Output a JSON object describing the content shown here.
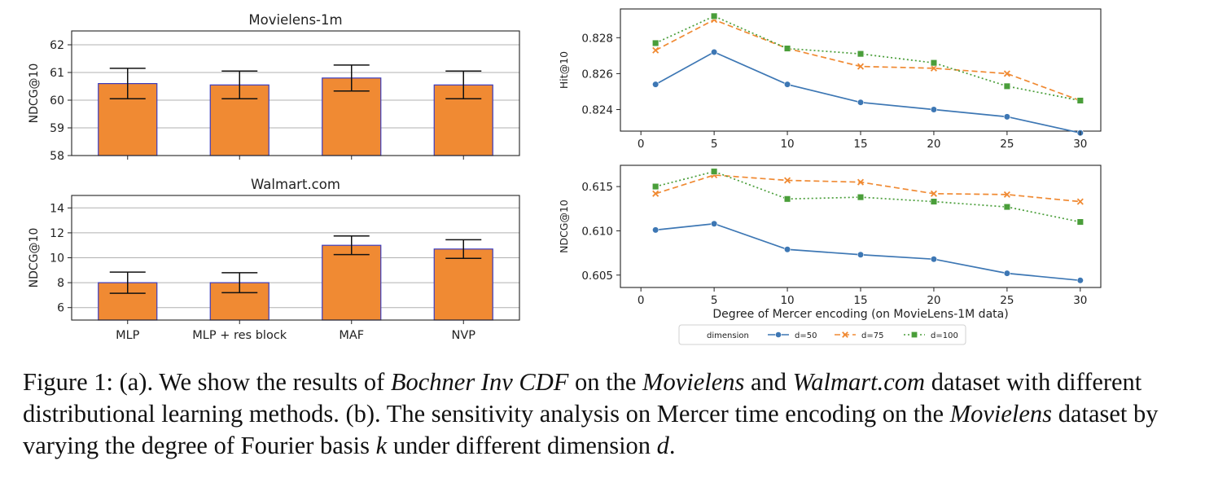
{
  "panel_a": [
    {
      "title": "Movielens-1m",
      "ylabel": "NDCG@10",
      "ylim": [
        58,
        62.5
      ],
      "yticks": [
        58,
        59,
        60,
        61,
        62
      ],
      "categories": [
        "MLP",
        "MLP + res block",
        "MAF",
        "NVP"
      ],
      "values": [
        60.6,
        60.55,
        60.8,
        60.55
      ],
      "errors": [
        0.55,
        0.5,
        0.47,
        0.5
      ]
    },
    {
      "title": "Walmart.com",
      "ylabel": "NDCG@10",
      "ylim": [
        5,
        15
      ],
      "yticks": [
        6,
        8,
        10,
        12,
        14
      ],
      "categories": [
        "MLP",
        "MLP + res block",
        "MAF",
        "NVP"
      ],
      "values": [
        8.0,
        8.0,
        11.0,
        10.7
      ],
      "errors": [
        0.85,
        0.8,
        0.75,
        0.75
      ]
    }
  ],
  "panel_b": {
    "xlabel": "Degree of Mercer encoding (on MovieLens-1M data)",
    "x": [
      1,
      5,
      10,
      15,
      20,
      25,
      30
    ],
    "xticks": [
      0,
      5,
      10,
      15,
      20,
      25,
      30
    ],
    "plots": [
      {
        "ylabel": "Hit@10",
        "ylim": [
          0.8228,
          0.8296
        ],
        "yticks": [
          0.824,
          0.826,
          0.828
        ],
        "tick_labels": [
          "0.824",
          "0.826",
          "0.828"
        ],
        "series": [
          {
            "name": "d=50",
            "values": [
              0.8254,
              0.8272,
              0.8254,
              0.8244,
              0.824,
              0.8236,
              0.8227
            ]
          },
          {
            "name": "d=75",
            "values": [
              0.8273,
              0.829,
              0.8274,
              0.8264,
              0.8263,
              0.826,
              0.8245
            ]
          },
          {
            "name": "d=100",
            "values": [
              0.8277,
              0.8292,
              0.8274,
              0.8271,
              0.8266,
              0.8253,
              0.8245
            ]
          }
        ]
      },
      {
        "ylabel": "NDCG@10",
        "ylim": [
          0.6036,
          0.6174
        ],
        "yticks": [
          0.605,
          0.61,
          0.615
        ],
        "tick_labels": [
          "0.605",
          "0.610",
          "0.615"
        ],
        "series": [
          {
            "name": "d=50",
            "values": [
              0.6101,
              0.6108,
              0.6079,
              0.6073,
              0.6068,
              0.6052,
              0.6044
            ]
          },
          {
            "name": "d=75",
            "values": [
              0.6142,
              0.6163,
              0.6157,
              0.6155,
              0.6142,
              0.6141,
              0.6133
            ]
          },
          {
            "name": "d=100",
            "values": [
              0.615,
              0.6167,
              0.6136,
              0.6138,
              0.6133,
              0.6127,
              0.611
            ]
          }
        ]
      }
    ],
    "legend": {
      "title": "dimension",
      "placement": "bottom-center",
      "entries": [
        "d=50",
        "d=75",
        "d=100"
      ]
    }
  },
  "colors": {
    "bar_fill": "#F08A33",
    "bar_edge": "#3A3CC0",
    "grid": "#b0b0b0",
    "d=50": "#3D77B4",
    "d=75": "#F08A33",
    "d=100": "#4A9E3A"
  },
  "caption": {
    "p1": "Figure 1: (a). We show the results of ",
    "i1": "Bochner Inv CDF",
    "p2": " on the ",
    "i2": "Movielens",
    "p3": " and ",
    "i3": "Walmart.com",
    "p4": " dataset with different distributional learning methods. (b). The sensitivity analysis on Mercer time encoding on the ",
    "i4": "Movielens",
    "p5": " dataset by varying the degree of Fourier basis ",
    "i5": "k",
    "p6": " under different dimension ",
    "i6": "d",
    "p7": "."
  },
  "chart_data": [
    {
      "type": "bar",
      "title": "Movielens-1m",
      "categories": [
        "MLP",
        "MLP + res block",
        "MAF",
        "NVP"
      ],
      "values": [
        60.6,
        60.55,
        60.8,
        60.55
      ],
      "errors": [
        0.55,
        0.5,
        0.47,
        0.5
      ],
      "xlabel": "",
      "ylabel": "NDCG@10",
      "ylim": [
        58,
        62.5
      ],
      "grid": true
    },
    {
      "type": "bar",
      "title": "Walmart.com",
      "categories": [
        "MLP",
        "MLP + res block",
        "MAF",
        "NVP"
      ],
      "values": [
        8.0,
        8.0,
        11.0,
        10.7
      ],
      "errors": [
        0.85,
        0.8,
        0.75,
        0.75
      ],
      "xlabel": "",
      "ylabel": "NDCG@10",
      "ylim": [
        5,
        15
      ],
      "grid": true
    },
    {
      "type": "line",
      "x": [
        1,
        5,
        10,
        15,
        20,
        25,
        30
      ],
      "series": [
        {
          "name": "d=50",
          "values": [
            0.8254,
            0.8272,
            0.8254,
            0.8244,
            0.824,
            0.8236,
            0.8227
          ]
        },
        {
          "name": "d=75",
          "values": [
            0.8273,
            0.829,
            0.8274,
            0.8264,
            0.8263,
            0.826,
            0.8245
          ]
        },
        {
          "name": "d=100",
          "values": [
            0.8277,
            0.8292,
            0.8274,
            0.8271,
            0.8266,
            0.8253,
            0.8245
          ]
        }
      ],
      "xlabel": "",
      "ylabel": "Hit@10",
      "ylim": [
        0.8228,
        0.8296
      ],
      "grid": false
    },
    {
      "type": "line",
      "x": [
        1,
        5,
        10,
        15,
        20,
        25,
        30
      ],
      "series": [
        {
          "name": "d=50",
          "values": [
            0.6101,
            0.6108,
            0.6079,
            0.6073,
            0.6068,
            0.6052,
            0.6044
          ]
        },
        {
          "name": "d=75",
          "values": [
            0.6142,
            0.6163,
            0.6157,
            0.6155,
            0.6142,
            0.6141,
            0.6133
          ]
        },
        {
          "name": "d=100",
          "values": [
            0.615,
            0.6167,
            0.6136,
            0.6138,
            0.6133,
            0.6127,
            0.611
          ]
        }
      ],
      "xlabel": "Degree of Mercer encoding (on MovieLens-1M data)",
      "ylabel": "NDCG@10",
      "ylim": [
        0.6036,
        0.6174
      ],
      "grid": false,
      "legend": "bottom-center"
    }
  ]
}
